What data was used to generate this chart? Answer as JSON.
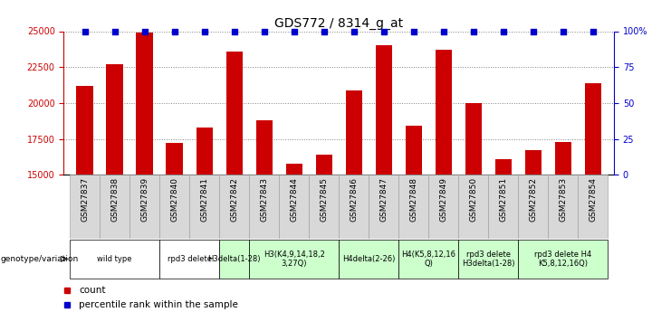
{
  "title": "GDS772 / 8314_g_at",
  "samples": [
    "GSM27837",
    "GSM27838",
    "GSM27839",
    "GSM27840",
    "GSM27841",
    "GSM27842",
    "GSM27843",
    "GSM27844",
    "GSM27845",
    "GSM27846",
    "GSM27847",
    "GSM27848",
    "GSM27849",
    "GSM27850",
    "GSM27851",
    "GSM27852",
    "GSM27853",
    "GSM27854"
  ],
  "counts": [
    21200,
    22700,
    24900,
    17200,
    18300,
    23600,
    18800,
    15800,
    16400,
    20900,
    24000,
    18400,
    23700,
    20000,
    16100,
    16700,
    17300,
    21400
  ],
  "percentile_ranks": [
    100,
    100,
    100,
    100,
    100,
    100,
    100,
    100,
    100,
    100,
    100,
    100,
    100,
    100,
    100,
    100,
    100,
    100
  ],
  "bar_color": "#cc0000",
  "dot_color": "#0000cc",
  "ylim_left": [
    15000,
    25000
  ],
  "ylim_right": [
    0,
    100
  ],
  "yticks_left": [
    15000,
    17500,
    20000,
    22500,
    25000
  ],
  "yticks_right": [
    0,
    25,
    50,
    75,
    100
  ],
  "groups": [
    {
      "label": "wild type",
      "start": 0,
      "end": 3,
      "color": "#ffffff"
    },
    {
      "label": "rpd3 delete",
      "start": 3,
      "end": 5,
      "color": "#ffffff"
    },
    {
      "label": "H3delta(1-28)",
      "start": 5,
      "end": 6,
      "color": "#ccffcc"
    },
    {
      "label": "H3(K4,9,14,18,2\n3,27Q)",
      "start": 6,
      "end": 9,
      "color": "#ccffcc"
    },
    {
      "label": "H4delta(2-26)",
      "start": 9,
      "end": 11,
      "color": "#ccffcc"
    },
    {
      "label": "H4(K5,8,12,16\nQ)",
      "start": 11,
      "end": 13,
      "color": "#ccffcc"
    },
    {
      "label": "rpd3 delete\nH3delta(1-28)",
      "start": 13,
      "end": 15,
      "color": "#ccffcc"
    },
    {
      "label": "rpd3 delete H4\nK5,8,12,16Q)",
      "start": 15,
      "end": 18,
      "color": "#ccffcc"
    }
  ],
  "genotype_label": "genotype/variation",
  "legend_count_label": "count",
  "legend_percentile_label": "percentile rank within the sample",
  "title_fontsize": 10,
  "tick_label_fontsize": 6.5,
  "group_label_fontsize": 6,
  "axis_tick_fontsize": 7,
  "bar_color_left_axis": "#cc0000",
  "right_axis_color": "#0000cc",
  "tick_bg_color": "#d8d8d8",
  "figure_bg": "#ffffff"
}
